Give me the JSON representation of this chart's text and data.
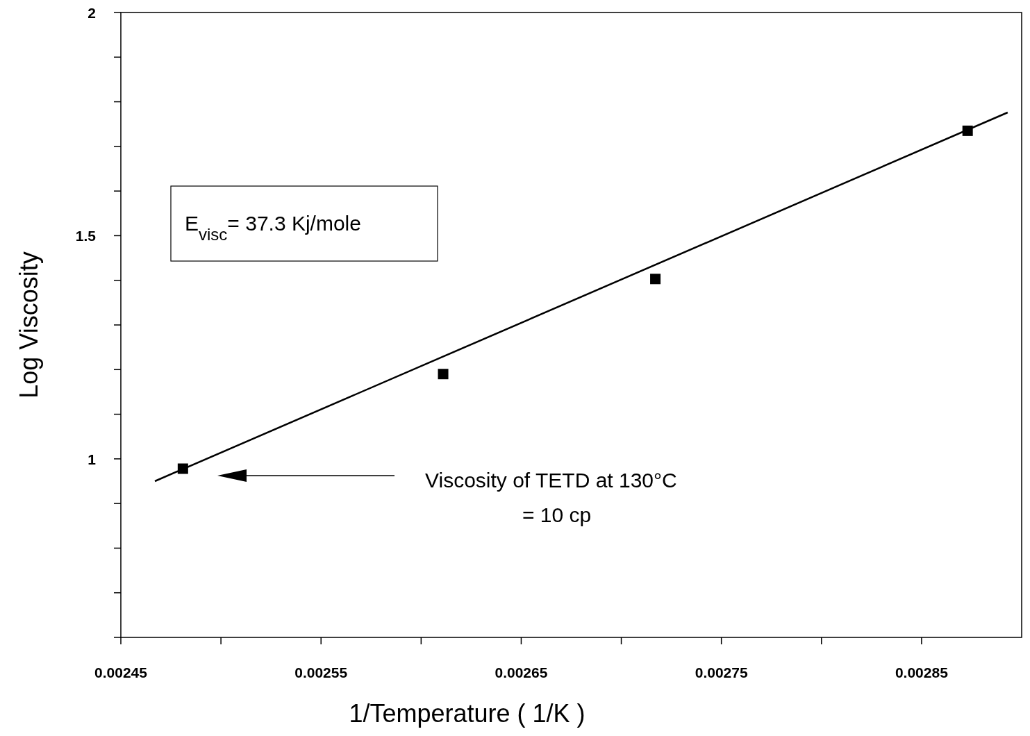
{
  "chart_data": {
    "type": "scatter",
    "xlabel": "1/Temperature  ( 1/K )",
    "ylabel": "Log  Viscosity",
    "xlim": [
      0.00245,
      0.0029
    ],
    "ylim": [
      0.6,
      2
    ],
    "xticks": [
      0.00245,
      {
        "value": 0.0025,
        "label": null
      },
      0.00255,
      {
        "value": 0.0026,
        "label": null
      },
      0.00265,
      {
        "value": 0.0027,
        "label": null
      },
      0.00275,
      {
        "value": 0.0028,
        "label": null
      },
      0.00285
    ],
    "yticks": [
      {
        "value": 0.6,
        "label": null
      },
      {
        "value": 0.7,
        "label": null
      },
      {
        "value": 0.8,
        "label": null
      },
      {
        "value": 0.9,
        "label": null
      },
      1,
      {
        "value": 1.1,
        "label": null
      },
      {
        "value": 1.2,
        "label": null
      },
      {
        "value": 1.3,
        "label": null
      },
      {
        "value": 1.4,
        "label": null
      },
      1.5,
      {
        "value": 1.6,
        "label": null
      },
      {
        "value": 1.7,
        "label": null
      },
      {
        "value": 1.8,
        "label": null
      },
      {
        "value": 1.9,
        "label": null
      },
      2
    ],
    "series": [
      {
        "type": "scatter",
        "color": "#000000",
        "marker": "square",
        "x": [
          0.002481,
          0.002611,
          0.002717,
          0.002873
        ],
        "values": [
          0.978,
          1.19,
          1.403,
          1.735
        ]
      },
      {
        "type": "line",
        "color": "#000000",
        "marker": "none",
        "line_style": "solid",
        "x": [
          0.002467,
          0.002893
        ],
        "values": [
          0.95,
          1.776
        ]
      }
    ],
    "annotations": [
      "E$_{visc}$= 37.3 Kj/mole",
      "Viscosity of TETD at 130°C\n=  10 cp"
    ],
    "grid": false
  }
}
